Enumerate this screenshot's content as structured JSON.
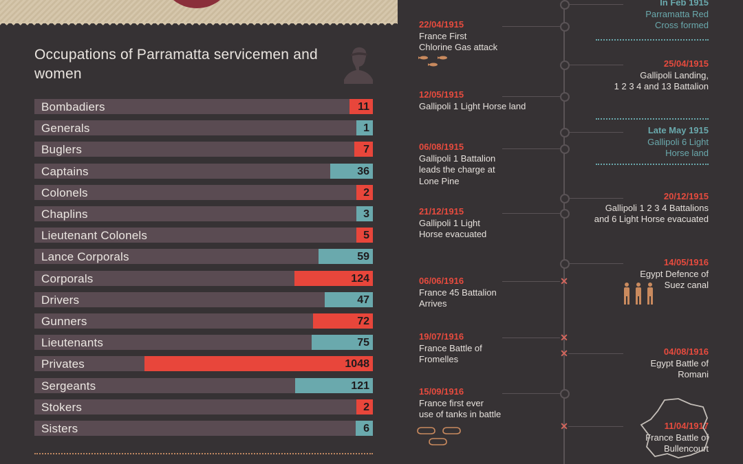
{
  "chart_data": {
    "type": "bar",
    "title": "Occupations of Parramatta servicemen and women",
    "categories": [
      "Bombadiers",
      "Generals",
      "Buglers",
      "Captains",
      "Colonels",
      "Chaplins",
      "Lieutenant Colonels",
      "Lance Corporals",
      "Corporals",
      "Drivers",
      "Gunners",
      "Lieutenants",
      "Privates",
      "Sergeants",
      "Stokers",
      "Sisters"
    ],
    "values": [
      11,
      1,
      7,
      36,
      2,
      3,
      5,
      59,
      124,
      47,
      72,
      75,
      1048,
      121,
      2,
      6
    ],
    "colors": [
      "#e8463b",
      "#6aa9ad",
      "#e8463b",
      "#6aa9ad",
      "#e8463b",
      "#6aa9ad",
      "#e8463b",
      "#6aa9ad",
      "#e8463b",
      "#6aa9ad",
      "#e8463b",
      "#6aa9ad",
      "#e8463b",
      "#6aa9ad",
      "#e8463b",
      "#6aa9ad"
    ]
  },
  "timeline": {
    "events": [
      {
        "date": "In Feb 1915",
        "text": [
          "Parramatta Red",
          "Cross formed"
        ],
        "side": "right",
        "color": "teal"
      },
      {
        "date": "22/04/1915",
        "text": [
          "France First",
          "Chlorine Gas attack"
        ],
        "side": "left",
        "color": "red"
      },
      {
        "date": "25/04/1915",
        "text": [
          "Gallipoli Landing,",
          "1 2 3 4 and 13 Battalion"
        ],
        "side": "right",
        "color": "red"
      },
      {
        "date": "12/05/1915",
        "text": [
          "Gallipoli 1 Light Horse land"
        ],
        "side": "left",
        "color": "red"
      },
      {
        "date": "Late May 1915",
        "text": [
          "Gallipoli 6 Light",
          "Horse land"
        ],
        "side": "right",
        "color": "teal"
      },
      {
        "date": "06/08/1915",
        "text": [
          "Gallipoli 1 Battalion",
          "leads the charge at",
          "Lone Pine"
        ],
        "side": "left",
        "color": "red"
      },
      {
        "date": "20/12/1915",
        "text": [
          "Gallipoli 1 2 3 4 Battalions",
          "and 6 Light Horse evacuated"
        ],
        "side": "right",
        "color": "red"
      },
      {
        "date": "21/12/1915",
        "text": [
          "Gallipoli 1 Light",
          "Horse evacuated"
        ],
        "side": "left",
        "color": "red"
      },
      {
        "date": "14/05/1916",
        "text": [
          "Egypt Defence of",
          "Suez canal"
        ],
        "side": "right",
        "color": "red"
      },
      {
        "date": "06/06/1916",
        "text": [
          "France 45 Battalion",
          "Arrives"
        ],
        "side": "left",
        "color": "red"
      },
      {
        "date": "19/07/1916",
        "text": [
          "France Battle of",
          "Fromelles"
        ],
        "side": "left",
        "color": "red"
      },
      {
        "date": "04/08/1916",
        "text": [
          "Egypt Battle of",
          "Romani"
        ],
        "side": "right",
        "color": "red"
      },
      {
        "date": "15/09/1916",
        "text": [
          "France first ever",
          "use of tanks in battle"
        ],
        "side": "left",
        "color": "red"
      },
      {
        "date": "11/04/1917",
        "text": [
          "France Battle of",
          "Bullencourt"
        ],
        "side": "right",
        "color": "red"
      }
    ]
  }
}
